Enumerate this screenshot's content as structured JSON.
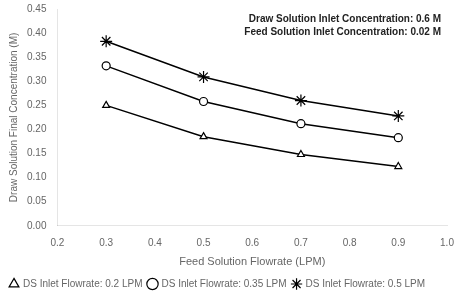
{
  "chart_data": {
    "type": "line",
    "x_label": "Feed Solution Flowrate (LPM)",
    "y_label": "Draw Solution Final Concentration (M)",
    "annotations": [
      "Draw Solution Inlet Concentration: 0.6 M",
      "Feed Solution Inlet Concentration: 0.02 M"
    ],
    "x": [
      0.3,
      0.5,
      0.7,
      0.9
    ],
    "series": [
      {
        "name": "DS Inlet Flowrate: 0.2 LPM",
        "color": "black",
        "marker": "triangle",
        "values": [
          0.25,
          0.185,
          0.148,
          0.123
        ]
      },
      {
        "name": "DS Inlet Flowrate: 0.35 LPM",
        "color": "black",
        "marker": "circle",
        "values": [
          0.332,
          0.258,
          0.212,
          0.183
        ]
      },
      {
        "name": "DS Inlet Flowrate: 0.5 LPM",
        "color": "black",
        "marker": "star",
        "values": [
          0.383,
          0.309,
          0.26,
          0.228
        ]
      }
    ],
    "xlim": [
      0.2,
      1.0
    ],
    "xticks": [
      0.2,
      0.3,
      0.4,
      0.5,
      0.6,
      0.7,
      0.8,
      0.9,
      {
        "value": 1.0,
        "label": "1.0"
      }
    ],
    "ylim": [
      0.0,
      0.45
    ],
    "yticks": [
      {
        "value": 0.0,
        "label": "0.00"
      },
      0.05,
      {
        "value": 0.1,
        "label": "0.10"
      },
      0.15,
      {
        "value": 0.2,
        "label": "0.20"
      },
      0.25,
      {
        "value": 0.3,
        "label": "0.30"
      },
      0.35,
      {
        "value": 0.4,
        "label": "0.40"
      },
      0.45
    ],
    "grid": false,
    "legend": "lower left"
  }
}
